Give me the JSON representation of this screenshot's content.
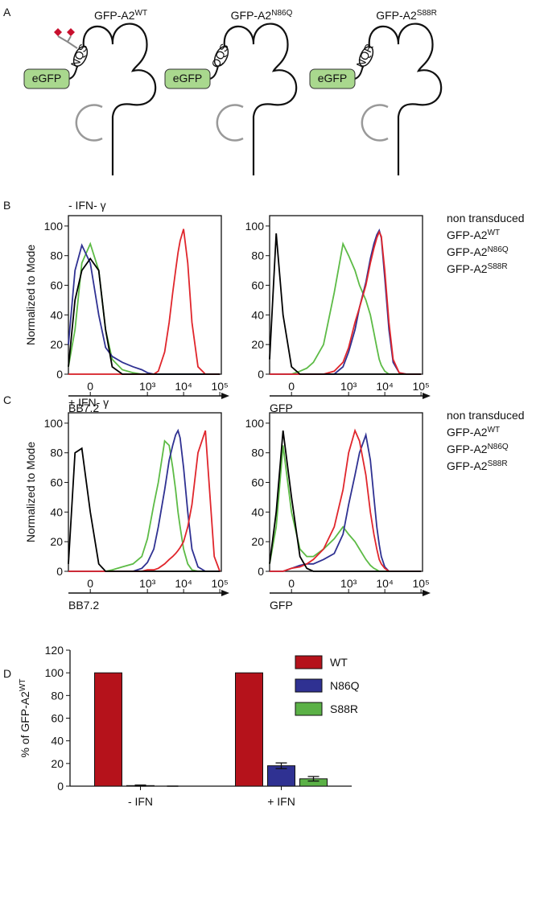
{
  "panel_labels": [
    "A",
    "B",
    "C",
    "D"
  ],
  "diagram": {
    "constructs": [
      {
        "title": "GFP-A2",
        "sup": "WT",
        "tag": "eGFP",
        "motif": "NQS",
        "glycosylated": true
      },
      {
        "title": "GFP-A2",
        "sup": "N86Q",
        "tag": "eGFP",
        "motif": "QQS",
        "glycosylated": false
      },
      {
        "title": "GFP-A2",
        "sup": "S88R",
        "tag": "eGFP",
        "motif": "NQR",
        "glycosylated": false
      }
    ]
  },
  "chart_data": [
    {
      "type": "line",
      "annotation": "- IFN- γ",
      "ylabel": "Normalized to Mode",
      "xlabel": "BB7.2",
      "xscale": "biexponential",
      "legend": false,
      "x": [
        -100,
        -60,
        -30,
        0,
        30,
        60,
        100,
        200,
        400,
        700,
        1000,
        1500,
        2000,
        3000,
        4000,
        5000,
        6000,
        7000,
        8000,
        10000,
        13000,
        17000,
        25000,
        40000,
        70000,
        100000
      ],
      "xlim": [
        -100,
        110000
      ],
      "xticks": [
        0,
        {
          "value": 1000,
          "label": "10³"
        },
        {
          "value": 10000,
          "label": "10⁴"
        },
        {
          "value": 100000,
          "label": "10⁵"
        }
      ],
      "ylim": [
        0,
        107
      ],
      "yticks": [
        0,
        20,
        40,
        60,
        80,
        100
      ],
      "series": [
        {
          "name": "non transduced",
          "color": "#000000",
          "values": [
            5,
            50,
            70,
            78,
            70,
            30,
            5,
            0,
            0,
            0,
            0,
            0,
            0,
            0,
            0,
            0,
            0,
            0,
            0,
            0,
            0,
            0,
            0,
            0,
            0,
            0
          ]
        },
        {
          "name": "GFP-A2",
          "sup": "WT",
          "color": "#e0262c",
          "values": [
            0,
            0,
            0,
            0,
            0,
            0,
            0,
            0,
            0,
            0,
            0,
            0,
            2,
            15,
            35,
            55,
            70,
            82,
            90,
            98,
            75,
            35,
            5,
            0,
            0,
            0
          ]
        },
        {
          "name": "GFP-A2",
          "sup": "N86Q",
          "color": "#2f3192",
          "values": [
            20,
            70,
            87,
            75,
            40,
            18,
            12,
            8,
            5,
            3,
            1,
            0,
            0,
            0,
            0,
            0,
            0,
            0,
            0,
            0,
            0,
            0,
            0,
            0,
            0,
            0
          ]
        },
        {
          "name": "GFP-A2",
          "sup": "S88R",
          "color": "#5dbb46",
          "values": [
            5,
            30,
            75,
            88,
            70,
            30,
            10,
            3,
            1,
            0,
            0,
            0,
            0,
            0,
            0,
            0,
            0,
            0,
            0,
            0,
            0,
            0,
            0,
            0,
            0,
            0
          ]
        }
      ]
    },
    {
      "type": "line",
      "xlabel": "GFP",
      "xscale": "biexponential",
      "legend": true,
      "x": [
        -100,
        -60,
        -30,
        0,
        30,
        60,
        100,
        200,
        400,
        700,
        1000,
        1500,
        2000,
        3000,
        4000,
        5000,
        6000,
        7000,
        8000,
        10000,
        13000,
        17000,
        25000,
        40000,
        70000,
        100000
      ],
      "xlim": [
        -100,
        110000
      ],
      "xticks": [
        0,
        {
          "value": 1000,
          "label": "10³"
        },
        {
          "value": 10000,
          "label": "10⁴"
        },
        {
          "value": 100000,
          "label": "10⁵"
        }
      ],
      "ylim": [
        0,
        107
      ],
      "yticks": [
        0,
        20,
        40,
        60,
        80,
        100
      ],
      "series": [
        {
          "name": "non transduced",
          "color": "#000000",
          "values": [
            10,
            95,
            40,
            5,
            0,
            0,
            0,
            0,
            0,
            0,
            0,
            0,
            0,
            0,
            0,
            0,
            0,
            0,
            0,
            0,
            0,
            0,
            0,
            0,
            0,
            0
          ]
        },
        {
          "name": "GFP-A2",
          "sup": "WT",
          "color": "#e0262c",
          "values": [
            0,
            0,
            0,
            0,
            0,
            0,
            0,
            0,
            2,
            8,
            18,
            35,
            45,
            60,
            75,
            85,
            92,
            96,
            93,
            70,
            35,
            10,
            1,
            0,
            0,
            0
          ]
        },
        {
          "name": "GFP-A2",
          "sup": "N86Q",
          "color": "#2f3192",
          "values": [
            0,
            0,
            0,
            0,
            0,
            0,
            0,
            0,
            0,
            5,
            15,
            30,
            45,
            62,
            78,
            88,
            94,
            97,
            92,
            65,
            30,
            8,
            1,
            0,
            0,
            0
          ]
        },
        {
          "name": "GFP-A2",
          "sup": "S88R",
          "color": "#5dbb46",
          "values": [
            0,
            0,
            0,
            0,
            2,
            4,
            8,
            20,
            55,
            88,
            80,
            70,
            60,
            50,
            40,
            28,
            18,
            10,
            6,
            2,
            0,
            0,
            0,
            0,
            0,
            0
          ]
        }
      ]
    },
    {
      "type": "line",
      "annotation": "+ IFN- γ",
      "ylabel": "Normalized to Mode",
      "xlabel": "BB7.2",
      "xscale": "biexponential",
      "legend": false,
      "x": [
        -100,
        -60,
        -30,
        0,
        30,
        60,
        100,
        200,
        400,
        700,
        1000,
        1500,
        2000,
        3000,
        4000,
        5000,
        6000,
        7000,
        8000,
        10000,
        13000,
        17000,
        25000,
        40000,
        70000,
        100000
      ],
      "xlim": [
        -100,
        110000
      ],
      "xticks": [
        0,
        {
          "value": 1000,
          "label": "10³"
        },
        {
          "value": 10000,
          "label": "10⁴"
        },
        {
          "value": 100000,
          "label": "10⁵"
        }
      ],
      "ylim": [
        0,
        107
      ],
      "yticks": [
        0,
        20,
        40,
        60,
        80,
        100
      ],
      "series": [
        {
          "name": "non transduced",
          "color": "#000000",
          "values": [
            5,
            80,
            83,
            40,
            5,
            0,
            0,
            0,
            0,
            0,
            0,
            0,
            0,
            0,
            0,
            0,
            0,
            0,
            0,
            0,
            0,
            0,
            0,
            0,
            0,
            0
          ]
        },
        {
          "name": "GFP-A2",
          "sup": "WT",
          "color": "#e0262c",
          "values": [
            0,
            0,
            0,
            0,
            0,
            0,
            0,
            0,
            0,
            0,
            1,
            1,
            2,
            5,
            8,
            10,
            12,
            14,
            16,
            20,
            30,
            45,
            80,
            95,
            10,
            0
          ]
        },
        {
          "name": "GFP-A2",
          "sup": "N86Q",
          "color": "#2f3192",
          "values": [
            0,
            0,
            0,
            0,
            0,
            0,
            0,
            0,
            0,
            2,
            6,
            15,
            30,
            55,
            75,
            85,
            92,
            95,
            90,
            70,
            40,
            15,
            3,
            0,
            0,
            0
          ]
        },
        {
          "name": "GFP-A2",
          "sup": "S88R",
          "color": "#5dbb46",
          "values": [
            0,
            0,
            0,
            0,
            0,
            0,
            1,
            3,
            5,
            10,
            22,
            45,
            60,
            88,
            85,
            70,
            55,
            40,
            30,
            15,
            5,
            1,
            0,
            0,
            0,
            0
          ]
        }
      ]
    },
    {
      "type": "line",
      "xlabel": "GFP",
      "xscale": "biexponential",
      "legend": true,
      "x": [
        -100,
        -60,
        -30,
        0,
        30,
        60,
        100,
        200,
        400,
        700,
        1000,
        1500,
        2000,
        3000,
        4000,
        5000,
        6000,
        7000,
        8000,
        10000,
        13000,
        17000,
        25000,
        40000,
        70000,
        100000
      ],
      "xlim": [
        -100,
        110000
      ],
      "xticks": [
        0,
        {
          "value": 1000,
          "label": "10³"
        },
        {
          "value": 10000,
          "label": "10⁴"
        },
        {
          "value": 100000,
          "label": "10⁵"
        }
      ],
      "ylim": [
        0,
        107
      ],
      "yticks": [
        0,
        20,
        40,
        60,
        80,
        100
      ],
      "series": [
        {
          "name": "non transduced",
          "color": "#000000",
          "values": [
            5,
            40,
            95,
            50,
            10,
            2,
            0,
            0,
            0,
            0,
            0,
            0,
            0,
            0,
            0,
            0,
            0,
            0,
            0,
            0,
            0,
            0,
            0,
            0,
            0,
            0
          ]
        },
        {
          "name": "GFP-A2",
          "sup": "WT",
          "color": "#e0262c",
          "values": [
            0,
            0,
            0,
            2,
            3,
            5,
            8,
            15,
            30,
            55,
            80,
            95,
            88,
            65,
            40,
            25,
            15,
            8,
            5,
            2,
            0,
            0,
            0,
            0,
            0,
            0
          ]
        },
        {
          "name": "GFP-A2",
          "sup": "N86Q",
          "color": "#2f3192",
          "values": [
            0,
            0,
            0,
            2,
            4,
            5,
            5,
            8,
            12,
            25,
            45,
            65,
            80,
            92,
            75,
            50,
            30,
            18,
            10,
            3,
            0,
            0,
            0,
            0,
            0,
            0
          ]
        },
        {
          "name": "GFP-A2",
          "sup": "S88R",
          "color": "#5dbb46",
          "values": [
            5,
            30,
            85,
            40,
            15,
            10,
            10,
            15,
            22,
            30,
            25,
            20,
            15,
            8,
            4,
            2,
            1,
            0,
            0,
            0,
            0,
            0,
            0,
            0,
            0,
            0
          ]
        }
      ]
    },
    {
      "type": "bar",
      "ylabel": {
        "text": "% of GFP-A2",
        "sup": "WT"
      },
      "categories": [
        "- IFN",
        "+ IFN"
      ],
      "ylim": [
        0,
        120
      ],
      "yticks": [
        0,
        20,
        40,
        60,
        80,
        100,
        120
      ],
      "series": [
        {
          "name": "WT",
          "color": "#b5121b",
          "values": [
            100,
            100
          ]
        },
        {
          "name": "N86Q",
          "color": "#2f3192",
          "values": [
            0.5,
            18
          ],
          "errors": [
            0.5,
            2.5
          ]
        },
        {
          "name": "S88R",
          "color": "#5bb146",
          "values": [
            0,
            6.5
          ],
          "errors": [
            0,
            2
          ]
        }
      ]
    }
  ]
}
